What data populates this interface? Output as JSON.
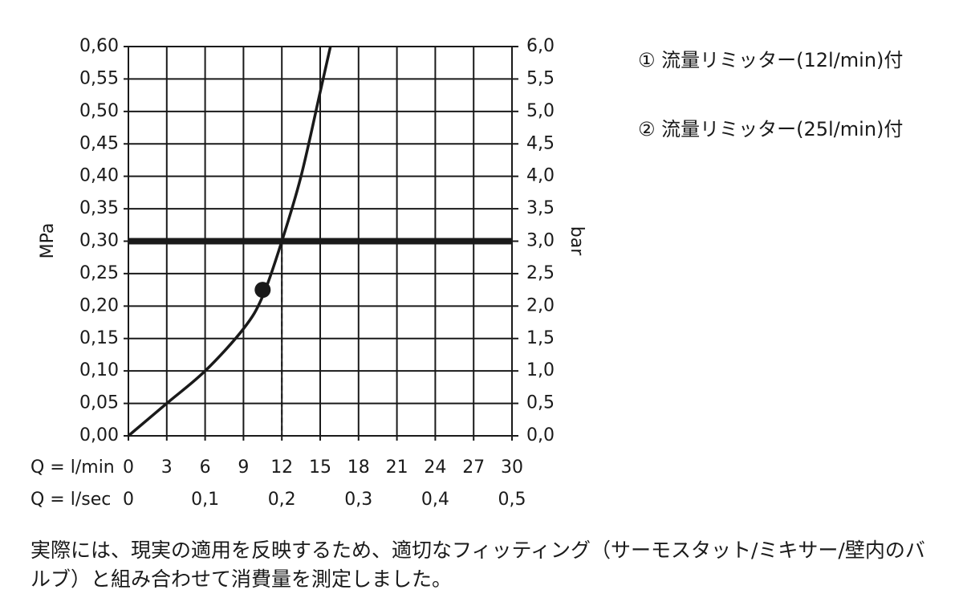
{
  "chart_data": {
    "type": "line",
    "ylabel": "MPa",
    "y2label": "bar",
    "xlabel": "Q = l/min",
    "x2label": "Q = l/sec",
    "xlim": [
      0,
      30
    ],
    "xticks": [
      0,
      3,
      6,
      9,
      12,
      15,
      18,
      21,
      24,
      27,
      30
    ],
    "x2lim": [
      0,
      0.5
    ],
    "x2ticks": [
      0,
      {
        "value": 0.1,
        "label": "0,1"
      },
      {
        "value": 0.2,
        "label": "0,2"
      },
      {
        "value": 0.3,
        "label": "0,3"
      },
      {
        "value": 0.4,
        "label": "0,4"
      },
      {
        "value": 0.5,
        "label": "0,5"
      }
    ],
    "ylim": [
      0,
      0.6
    ],
    "yticks": [
      {
        "value": 0,
        "label": "0,00"
      },
      {
        "value": 0.05,
        "label": "0,05"
      },
      {
        "value": 0.1,
        "label": "0,10"
      },
      {
        "value": 0.15,
        "label": "0,15"
      },
      {
        "value": 0.2,
        "label": "0,20"
      },
      {
        "value": 0.25,
        "label": "0,25"
      },
      {
        "value": 0.3,
        "label": "0,30"
      },
      {
        "value": 0.35,
        "label": "0,35"
      },
      {
        "value": 0.4,
        "label": "0,40"
      },
      {
        "value": 0.45,
        "label": "0,45"
      },
      {
        "value": 0.5,
        "label": "0,50"
      },
      {
        "value": 0.55,
        "label": "0,55"
      },
      {
        "value": 0.6,
        "label": "0,60"
      }
    ],
    "y2lim": [
      0,
      6
    ],
    "y2ticks": [
      {
        "value": 0,
        "label": "0,0"
      },
      {
        "value": 0.5,
        "label": "0,5"
      },
      {
        "value": 1,
        "label": "1,0"
      },
      {
        "value": 1.5,
        "label": "1,5"
      },
      {
        "value": 2,
        "label": "2,0"
      },
      {
        "value": 2.5,
        "label": "2,5"
      },
      {
        "value": 3,
        "label": "3,0"
      },
      {
        "value": 3.5,
        "label": "3,5"
      },
      {
        "value": 4,
        "label": "4,0"
      },
      {
        "value": 4.5,
        "label": "4,5"
      },
      {
        "value": 5,
        "label": "5,0"
      },
      {
        "value": 5.5,
        "label": "5,5"
      },
      {
        "value": 6,
        "label": "6,0"
      }
    ],
    "grid": true,
    "series": [
      {
        "color": "#1a1a1a",
        "x": [
          0,
          3,
          6,
          9,
          10.5,
          12,
          13.5,
          15,
          15.8
        ],
        "values": [
          0,
          0.05,
          0.1,
          0.165,
          0.215,
          0.3,
          0.4,
          0.53,
          0.6
        ]
      }
    ],
    "reference_y": 0.3,
    "reference_x": 12,
    "marker": {
      "x": 10.5,
      "y": 0.225
    },
    "notes": [
      "① 流量リミッター(12l/min)付",
      "② 流量リミッター(25l/min)付"
    ],
    "caption": "実際には、現実の適用を反映するため、適切なフィッティング（サーモスタット/ミキサー/壁内のバルブ）と組み合わせて消費量を測定しました。"
  }
}
